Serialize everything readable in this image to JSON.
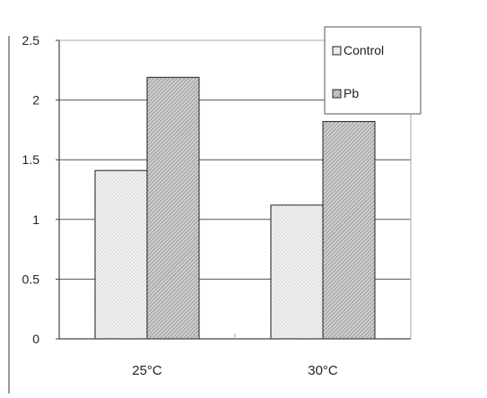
{
  "chart_data": {
    "type": "bar",
    "categories": [
      "25°C",
      "30°C"
    ],
    "series": [
      {
        "name": "Control",
        "values": [
          1.41,
          1.12
        ],
        "pattern": "dots"
      },
      {
        "name": "Pb",
        "values": [
          2.19,
          1.82
        ],
        "pattern": "hatch"
      }
    ],
    "ylim": [
      0,
      2.5
    ],
    "yticks": [
      "0",
      "0.5",
      "1",
      "1.5",
      "2",
      "2.5"
    ],
    "xlabel": "",
    "ylabel": "",
    "title": "",
    "grid": "horizontal",
    "legend_position": "top-right",
    "colors": {
      "axis": "#444444",
      "grid": "#555555",
      "bar_stroke": "#222222",
      "dots_fill": "#f3f3f3",
      "hatch_fill": "#bdbdbd"
    }
  }
}
